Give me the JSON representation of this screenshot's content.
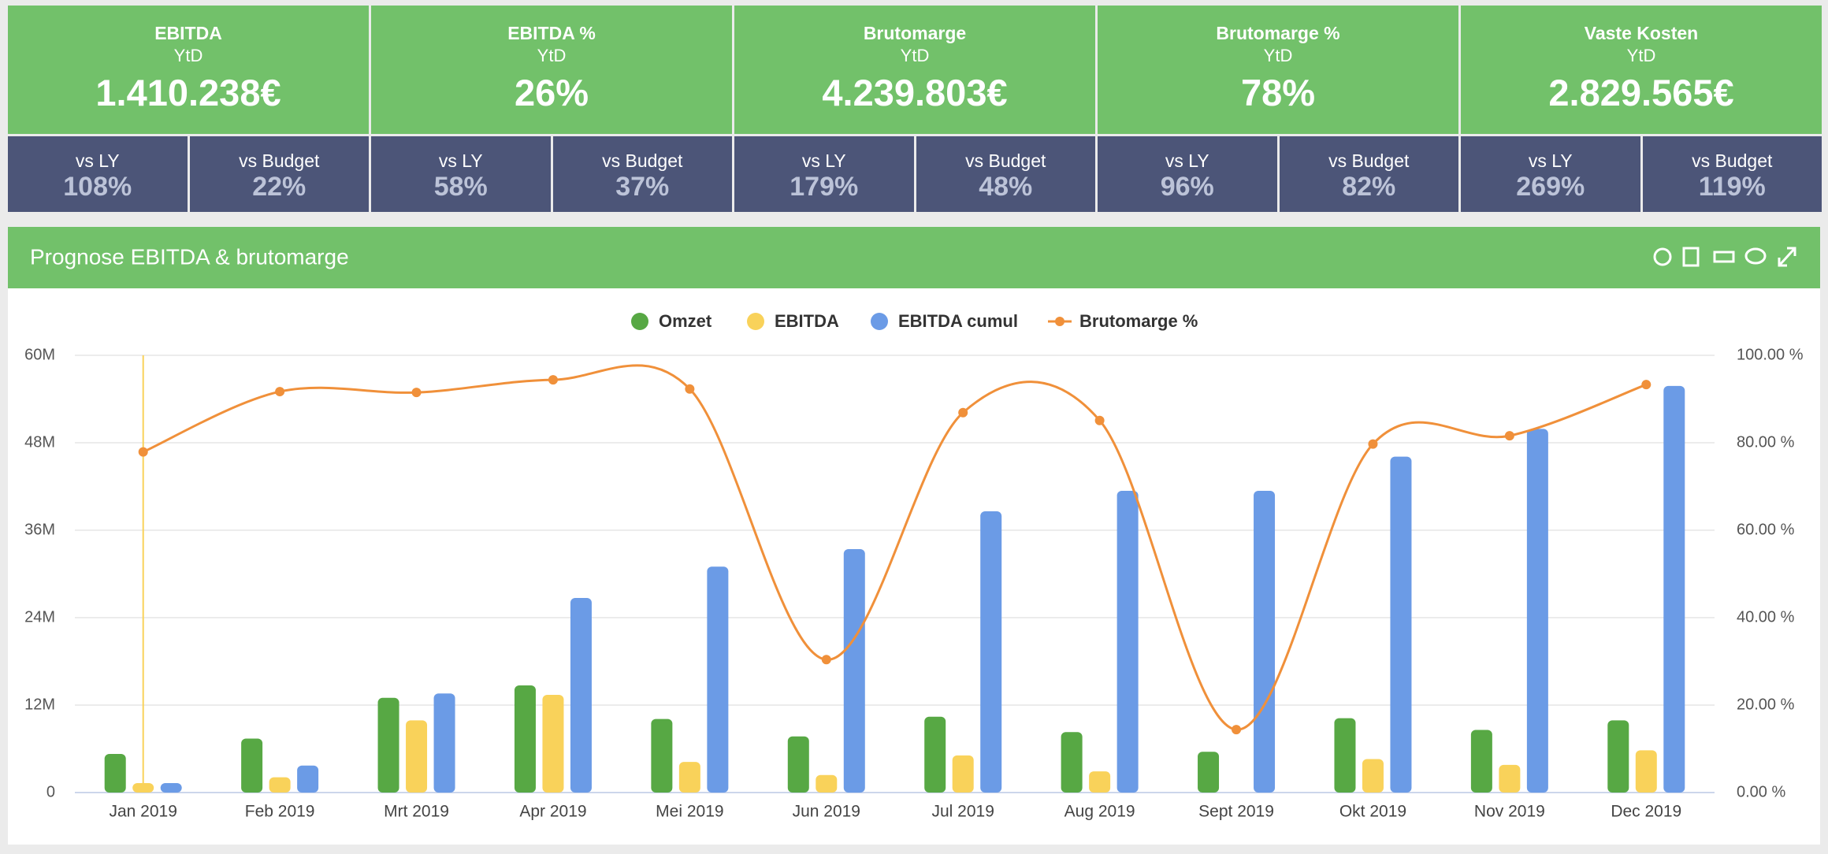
{
  "kpis": [
    {
      "title": "EBITDA",
      "period": "YtD",
      "value": "1.410.238€",
      "vs_ly_label": "vs LY",
      "vs_ly": "108%",
      "vs_budget_label": "vs Budget",
      "vs_budget": "22%"
    },
    {
      "title": "EBITDA %",
      "period": "YtD",
      "value": "26%",
      "vs_ly_label": "vs LY",
      "vs_ly": "58%",
      "vs_budget_label": "vs Budget",
      "vs_budget": "37%"
    },
    {
      "title": "Brutomarge",
      "period": "YtD",
      "value": "4.239.803€",
      "vs_ly_label": "vs LY",
      "vs_ly": "179%",
      "vs_budget_label": "vs Budget",
      "vs_budget": "48%"
    },
    {
      "title": "Brutomarge %",
      "period": "YtD",
      "value": "78%",
      "vs_ly_label": "vs LY",
      "vs_ly": "96%",
      "vs_budget_label": "vs Budget",
      "vs_budget": "82%"
    },
    {
      "title": "Vaste Kosten",
      "period": "YtD",
      "value": "2.829.565€",
      "vs_ly_label": "vs LY",
      "vs_ly": "269%",
      "vs_budget_label": "vs Budget",
      "vs_budget": "119%"
    }
  ],
  "panel_title": "Prognose EBITDA & brutomarge",
  "chart_data": {
    "type": "bar-line",
    "categories": [
      "Jan 2019",
      "Feb 2019",
      "Mrt 2019",
      "Apr 2019",
      "Mei 2019",
      "Jun 2019",
      "Jul 2019",
      "Aug 2019",
      "Sept 2019",
      "Okt 2019",
      "Nov 2019",
      "Dec 2019"
    ],
    "series": [
      {
        "name": "Omzet",
        "color": "#57a844",
        "type": "bar",
        "values": [
          5.3,
          7.4,
          13,
          14.7,
          10.1,
          7.7,
          10.4,
          8.3,
          5.6,
          10.2,
          8.6,
          9.9
        ]
      },
      {
        "name": "EBITDA",
        "color": "#f9d25a",
        "type": "bar",
        "values": [
          1.3,
          2.1,
          9.9,
          13.4,
          4.2,
          2.4,
          5.1,
          2.9,
          null,
          4.6,
          3.8,
          5.8
        ]
      },
      {
        "name": "EBITDA cumul",
        "color": "#6b9be6",
        "type": "bar",
        "values": [
          1.3,
          3.7,
          13.6,
          26.7,
          31,
          33.4,
          38.6,
          41.4,
          41.4,
          46.1,
          49.9,
          55.8
        ]
      },
      {
        "name": "Brutomarge %",
        "color": "#f0903a",
        "type": "line",
        "axis": "y2",
        "values": [
          77.9,
          91.7,
          91.5,
          94.4,
          92.3,
          30.4,
          86.9,
          85.1,
          14.4,
          79.7,
          81.6,
          93.3
        ]
      }
    ],
    "ylim": [
      0,
      60
    ],
    "yticks": [
      0,
      {
        "value": 12,
        "label": "12M"
      },
      {
        "value": 24,
        "label": "24M"
      },
      {
        "value": 36,
        "label": "36M"
      },
      {
        "value": 48,
        "label": "48M"
      },
      {
        "value": 60,
        "label": "60M"
      }
    ],
    "y2lim": [
      0,
      100
    ],
    "y2ticks": [
      {
        "value": 0,
        "label": "0.00 %"
      },
      {
        "value": 20,
        "label": "20.00 %"
      },
      {
        "value": 40,
        "label": "40.00 %"
      },
      {
        "value": 60,
        "label": "60.00 %"
      },
      {
        "value": 80,
        "label": "80.00 %"
      },
      {
        "value": 100,
        "label": "100.00 %"
      }
    ],
    "grid": true,
    "legend": "top"
  }
}
